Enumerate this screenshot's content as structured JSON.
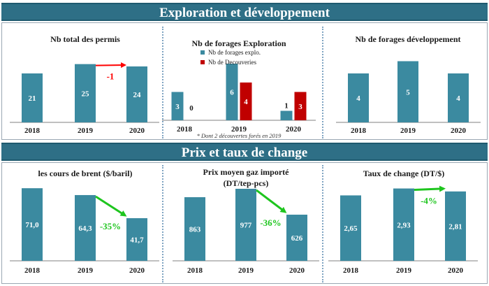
{
  "banners": {
    "top": "Exploration et développement",
    "bottom": "Prix et taux de change"
  },
  "colors": {
    "banner": "#2e6f86",
    "bar_primary": "#3b8aa0",
    "bar_secondary": "#c00000",
    "arrow_up": "#ff0000",
    "arrow_down": "#1ec51e"
  },
  "chart_data": [
    {
      "type": "bar",
      "title": "Nb total des permis",
      "categories": [
        "2018",
        "2019",
        "2020"
      ],
      "series": [
        {
          "values": [
            21,
            25,
            24
          ],
          "labels": [
            "21",
            "25",
            "24"
          ]
        }
      ],
      "ylim": [
        0,
        30
      ],
      "annotation": {
        "text": "-1",
        "from": "2019",
        "to": "2020",
        "color": "#ff0000"
      }
    },
    {
      "type": "bar",
      "title": "Nb de forages Exploration",
      "categories": [
        "2018",
        "2019",
        "2020"
      ],
      "series": [
        {
          "name": "Nb de forages explo.",
          "values": [
            3,
            6,
            1
          ],
          "labels": [
            "3",
            "6",
            "1"
          ]
        },
        {
          "name": "Nb de Decouveries",
          "values": [
            0,
            4,
            3
          ],
          "labels": [
            "0",
            "4",
            "3"
          ]
        }
      ],
      "ylim": [
        0,
        8
      ],
      "legend": "top-left",
      "footnote": "* Dont 2 découvertes forés en 2019"
    },
    {
      "type": "bar",
      "title": "Nb de forages développement",
      "categories": [
        "2018",
        "2019",
        "2020"
      ],
      "series": [
        {
          "values": [
            4,
            5,
            4
          ],
          "labels": [
            "4",
            "5",
            "4"
          ]
        }
      ],
      "ylim": [
        0,
        6
      ]
    },
    {
      "type": "bar",
      "title": "les cours de brent ($/baril)",
      "categories": [
        "2018",
        "2019",
        "2020"
      ],
      "series": [
        {
          "values": [
            71.0,
            64.3,
            41.7
          ],
          "labels": [
            "71,0",
            "64,3",
            "41,7"
          ]
        }
      ],
      "ylim": [
        0,
        80
      ],
      "annotation": {
        "text": "-35%",
        "from": "2019",
        "to": "2020",
        "color": "#1ec51e"
      }
    },
    {
      "type": "bar",
      "title": "Prix moyen gaz importé (DT/tep-pcs)",
      "title_lines": [
        "Prix moyen gaz importé",
        "(DT/tep-pcs)"
      ],
      "categories": [
        "2018",
        "2019",
        "2020"
      ],
      "series": [
        {
          "values": [
            863,
            977,
            626
          ],
          "labels": [
            "863",
            "977",
            "626"
          ]
        }
      ],
      "ylim": [
        0,
        1100
      ],
      "annotation": {
        "text": "-36%",
        "from": "2019",
        "to": "2020",
        "color": "#1ec51e"
      }
    },
    {
      "type": "bar",
      "title": "Taux de change (DT/$)",
      "categories": [
        "2018",
        "2019",
        "2020"
      ],
      "series": [
        {
          "values": [
            2.65,
            2.93,
            2.81
          ],
          "labels": [
            "2,65",
            "2,93",
            "2,81"
          ]
        }
      ],
      "ylim": [
        0,
        3.2
      ],
      "annotation": {
        "text": "-4%",
        "from": "2019",
        "to": "2020",
        "color": "#1ec51e"
      }
    }
  ]
}
